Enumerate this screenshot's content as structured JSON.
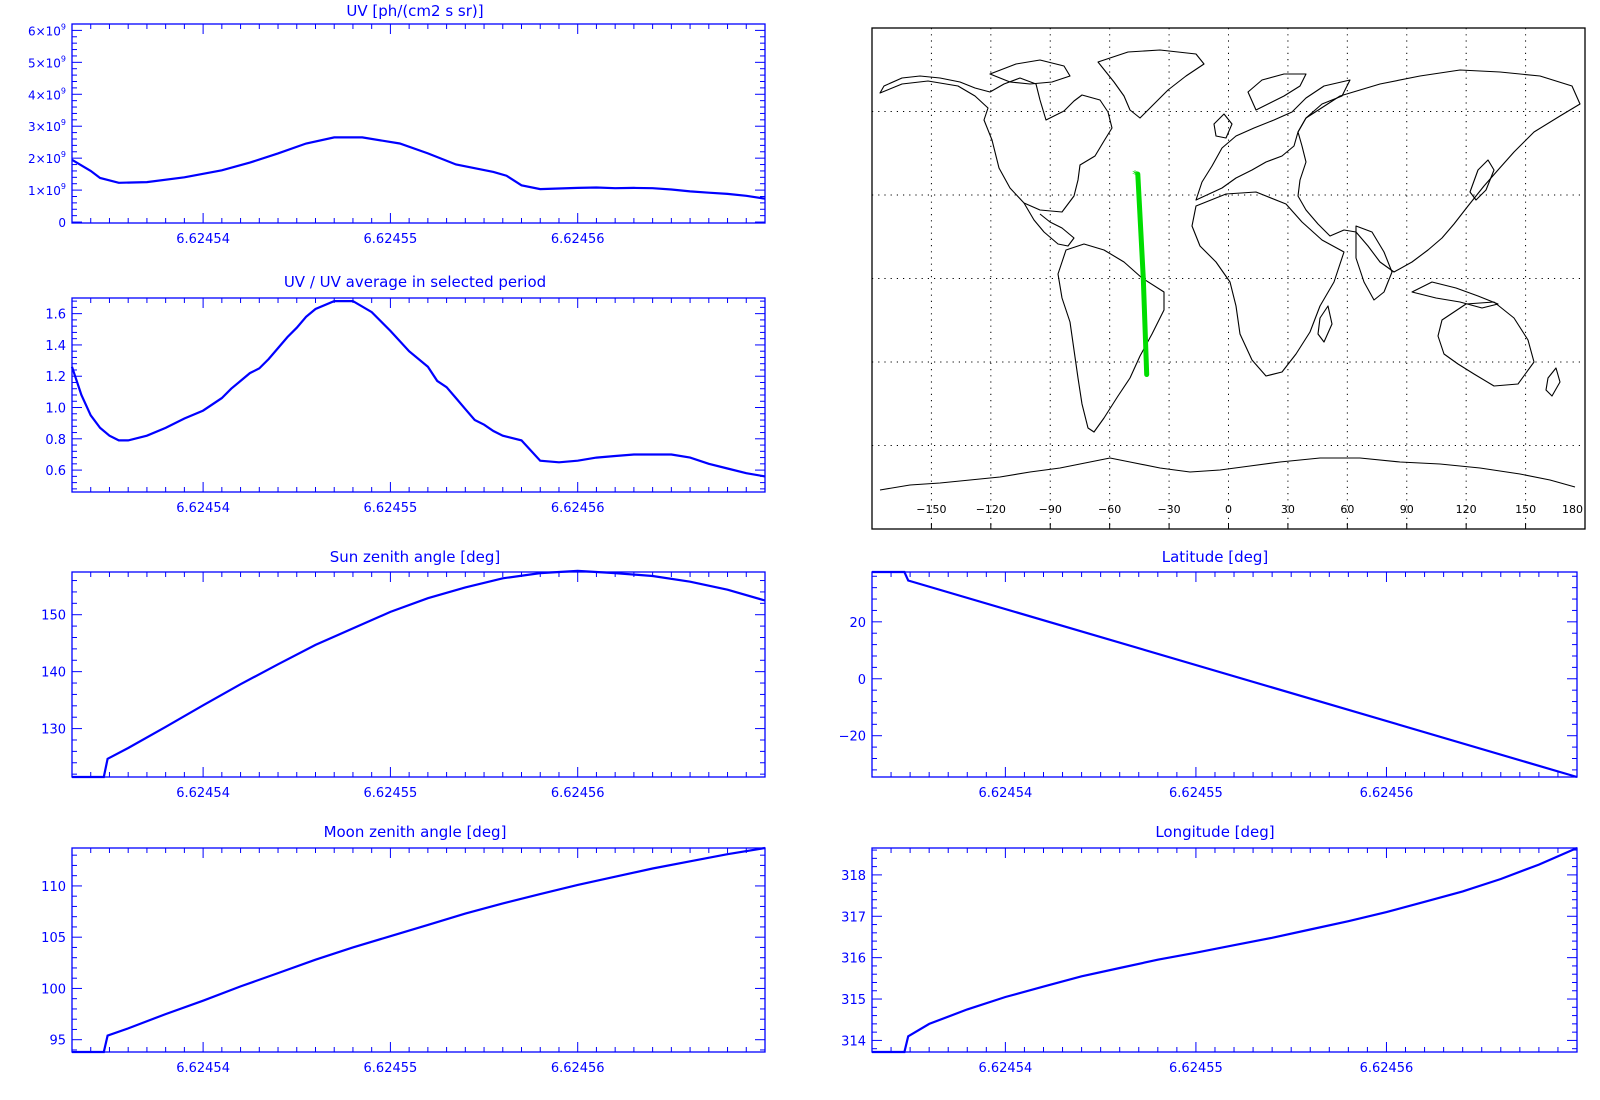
{
  "colors": {
    "axis": "#0000ff",
    "line": "#0000ff",
    "track": "#00dd00",
    "coast": "#000000",
    "grid": "#000000"
  },
  "chart_data": [
    {
      "id": "uv",
      "type": "line",
      "title": "UV [ph/(cm2 s sr)]",
      "xlabel": "",
      "ylabel": "",
      "xlim": [
        6.624533,
        6.62457
      ],
      "ylim": [
        -30000000,
        6200000000
      ],
      "xticks": [
        6.62454,
        6.62455,
        6.62456
      ],
      "xtick_labels": [
        "6.62454",
        "6.62455",
        "6.62456"
      ],
      "yticks": [
        0,
        1000000000,
        2000000000,
        3000000000,
        4000000000,
        5000000000,
        6000000000
      ],
      "ytick_labels": [
        {
          "mantissa": "0",
          "exponent": ""
        },
        {
          "mantissa": "1×10",
          "exponent": "9"
        },
        {
          "mantissa": "2×10",
          "exponent": "9"
        },
        {
          "mantissa": "3×10",
          "exponent": "9"
        },
        {
          "mantissa": "4×10",
          "exponent": "9"
        },
        {
          "mantissa": "5×10",
          "exponent": "9"
        },
        {
          "mantissa": "6×10",
          "exponent": "9"
        }
      ],
      "x": [
        6.624533,
        6.624534,
        6.6245345,
        6.6245355,
        6.624537,
        6.624539,
        6.624541,
        6.6245425,
        6.624544,
        6.6245455,
        6.624547,
        6.6245485,
        6.6245505,
        6.624552,
        6.6245535,
        6.6245555,
        6.6245562,
        6.624557,
        6.624558,
        6.624559,
        6.62456,
        6.624561,
        6.624562,
        6.624563,
        6.624564,
        6.624565,
        6.624566,
        6.624567,
        6.624568,
        6.624569,
        6.62457
      ],
      "y": [
        1950000000,
        1600000000,
        1380000000,
        1230000000,
        1250000000,
        1400000000,
        1620000000,
        1860000000,
        2150000000,
        2460000000,
        2650000000,
        2650000000,
        2460000000,
        2150000000,
        1800000000,
        1570000000,
        1450000000,
        1150000000,
        1030000000,
        1050000000,
        1070000000,
        1080000000,
        1060000000,
        1070000000,
        1060000000,
        1020000000,
        960000000,
        920000000,
        880000000,
        820000000,
        730000000
      ]
    },
    {
      "id": "uvratio",
      "type": "line",
      "title": "UV / UV average in selected period",
      "xlabel": "",
      "ylabel": "",
      "xlim": [
        6.624533,
        6.62457
      ],
      "ylim": [
        0.46,
        1.7
      ],
      "xticks": [
        6.62454,
        6.62455,
        6.62456
      ],
      "xtick_labels": [
        "6.62454",
        "6.62455",
        "6.62456"
      ],
      "yticks": [
        0.6,
        0.8,
        1.0,
        1.2,
        1.4,
        1.6
      ],
      "ytick_labels": [
        "0.6",
        "0.8",
        "1.0",
        "1.2",
        "1.4",
        "1.6"
      ],
      "x": [
        6.624533,
        6.6245335,
        6.624534,
        6.6245345,
        6.624535,
        6.6245355,
        6.624536,
        6.624537,
        6.624538,
        6.624539,
        6.62454,
        6.624541,
        6.6245415,
        6.624542,
        6.6245425,
        6.624543,
        6.6245435,
        6.624544,
        6.6245445,
        6.624545,
        6.6245455,
        6.624546,
        6.624547,
        6.624548,
        6.624549,
        6.62455,
        6.624551,
        6.624552,
        6.6245525,
        6.624553,
        6.6245535,
        6.624554,
        6.6245545,
        6.624555,
        6.6245555,
        6.624556,
        6.624557,
        6.624558,
        6.624559,
        6.62456,
        6.624561,
        6.624562,
        6.624563,
        6.624564,
        6.624565,
        6.624566,
        6.624567,
        6.624568,
        6.624569,
        6.62457
      ],
      "y": [
        1.26,
        1.08,
        0.95,
        0.87,
        0.82,
        0.79,
        0.79,
        0.82,
        0.87,
        0.93,
        0.98,
        1.06,
        1.12,
        1.17,
        1.22,
        1.25,
        1.31,
        1.38,
        1.45,
        1.51,
        1.58,
        1.63,
        1.68,
        1.68,
        1.61,
        1.49,
        1.36,
        1.26,
        1.17,
        1.13,
        1.06,
        0.99,
        0.92,
        0.89,
        0.85,
        0.82,
        0.79,
        0.66,
        0.65,
        0.66,
        0.68,
        0.69,
        0.7,
        0.7,
        0.7,
        0.68,
        0.64,
        0.61,
        0.58,
        0.56
      ]
    },
    {
      "id": "sun",
      "type": "line",
      "title": "Sun zenith angle [deg]",
      "xlabel": "",
      "ylabel": "",
      "xlim": [
        6.624533,
        6.62457
      ],
      "ylim": [
        121.5,
        157.5
      ],
      "xticks": [
        6.62454,
        6.62455,
        6.62456
      ],
      "xtick_labels": [
        "6.62454",
        "6.62455",
        "6.62456"
      ],
      "yticks": [
        130,
        140,
        150
      ],
      "ytick_labels": [
        "130",
        "140",
        "150"
      ],
      "x": [
        6.624533,
        6.6245347,
        6.6245349,
        6.624536,
        6.624538,
        6.62454,
        6.624542,
        6.624544,
        6.624546,
        6.624548,
        6.62455,
        6.624552,
        6.624554,
        6.624556,
        6.624558,
        6.62456,
        6.624561,
        6.624562,
        6.624564,
        6.624566,
        6.624568,
        6.62457
      ],
      "y": [
        121.5,
        121.5,
        124.7,
        126.6,
        130.3,
        134.1,
        137.8,
        141.3,
        144.7,
        147.6,
        150.5,
        152.9,
        154.8,
        156.4,
        157.3,
        157.7,
        157.5,
        157.3,
        156.8,
        155.8,
        154.4,
        152.5
      ]
    },
    {
      "id": "moon",
      "type": "line",
      "title": "Moon zenith angle [deg]",
      "xlabel": "",
      "ylabel": "",
      "xlim": [
        6.624533,
        6.62457
      ],
      "ylim": [
        93.8,
        113.7
      ],
      "xticks": [
        6.62454,
        6.62455,
        6.62456
      ],
      "xtick_labels": [
        "6.62454",
        "6.62455",
        "6.62456"
      ],
      "yticks": [
        95,
        100,
        105,
        110
      ],
      "ytick_labels": [
        "95",
        "100",
        "105",
        "110"
      ],
      "x": [
        6.624533,
        6.6245347,
        6.6245349,
        6.624536,
        6.624538,
        6.62454,
        6.624542,
        6.624544,
        6.624546,
        6.624548,
        6.62455,
        6.624552,
        6.624554,
        6.624556,
        6.624558,
        6.62456,
        6.624562,
        6.624564,
        6.624566,
        6.624568,
        6.62457
      ],
      "y": [
        93.8,
        93.8,
        95.4,
        96.1,
        97.5,
        98.8,
        100.2,
        101.5,
        102.8,
        104.0,
        105.1,
        106.2,
        107.3,
        108.3,
        109.2,
        110.1,
        110.9,
        111.7,
        112.4,
        113.1,
        113.7
      ]
    },
    {
      "id": "lat",
      "type": "line",
      "title": "Latitude [deg]",
      "xlabel": "",
      "ylabel": "",
      "xlim": [
        6.624533,
        6.62457
      ],
      "ylim": [
        -34.5,
        37.5
      ],
      "xticks": [
        6.62454,
        6.62455,
        6.62456
      ],
      "xtick_labels": [
        "6.62454",
        "6.62455",
        "6.62456"
      ],
      "yticks": [
        -20,
        0,
        20
      ],
      "ytick_labels": [
        "−20",
        "0",
        "20"
      ],
      "x": [
        6.624533,
        6.6245347,
        6.6245349,
        6.62457
      ],
      "y": [
        37.5,
        37.5,
        34.5,
        -34.5
      ]
    },
    {
      "id": "lon",
      "type": "line",
      "title": "Longitude [deg]",
      "xlabel": "",
      "ylabel": "",
      "xlim": [
        6.624533,
        6.62457
      ],
      "ylim": [
        313.72,
        318.65
      ],
      "xticks": [
        6.62454,
        6.62455,
        6.62456
      ],
      "xtick_labels": [
        "6.62454",
        "6.62455",
        "6.62456"
      ],
      "yticks": [
        314,
        315,
        316,
        317,
        318
      ],
      "ytick_labels": [
        "314",
        "315",
        "316",
        "317",
        "318"
      ],
      "x": [
        6.624533,
        6.6245347,
        6.6245349,
        6.624536,
        6.624538,
        6.62454,
        6.624542,
        6.624544,
        6.624546,
        6.624548,
        6.62455,
        6.624552,
        6.624554,
        6.624556,
        6.624558,
        6.62456,
        6.624562,
        6.624564,
        6.624566,
        6.624568,
        6.62457
      ],
      "y": [
        313.72,
        313.72,
        314.1,
        314.4,
        314.75,
        315.05,
        315.3,
        315.55,
        315.75,
        315.95,
        316.12,
        316.3,
        316.48,
        316.68,
        316.88,
        317.1,
        317.35,
        317.6,
        317.9,
        318.25,
        318.65
      ]
    },
    {
      "id": "map",
      "type": "scatter",
      "title": "",
      "xlabel": "",
      "ylabel": "",
      "xlim": [
        -180,
        180
      ],
      "ylim": [
        -90,
        90
      ],
      "grid": true,
      "xticks": [
        -150,
        -120,
        -90,
        -60,
        -30,
        0,
        30,
        60,
        90,
        120,
        150,
        180
      ],
      "xtick_labels": [
        "−150",
        "−120",
        "−90",
        "−60",
        "−30",
        "0",
        "30",
        "60",
        "90",
        "120",
        "150",
        "180"
      ],
      "series": [
        {
          "x": [
            -45.8,
            -43.0,
            -41.3
          ],
          "y": [
            37.5,
            0.0,
            -34.5
          ]
        }
      ]
    }
  ]
}
